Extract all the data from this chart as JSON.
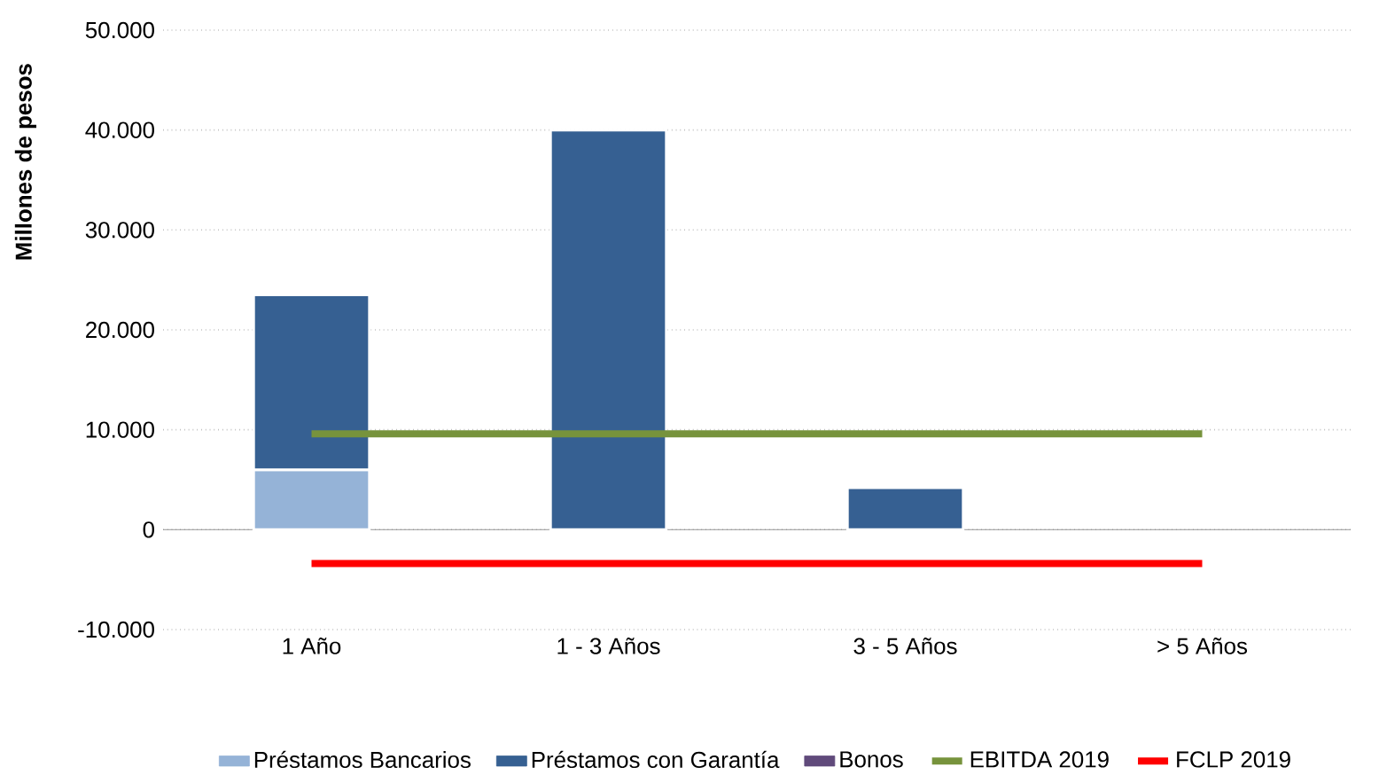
{
  "chart_data": {
    "type": "bar",
    "stacked": true,
    "ylabel": "Millones de pesos",
    "categories": [
      "1 Año",
      "1 - 3 Años",
      "3 - 5 Años",
      "> 5 Años"
    ],
    "series": [
      {
        "name": "Préstamos Bancarios",
        "color": "#95b3d7",
        "values": [
          6000,
          null,
          null,
          null
        ]
      },
      {
        "name": "Préstamos con Garantía",
        "color": "#366092",
        "values": [
          17500,
          40000,
          4200,
          null
        ]
      },
      {
        "name": "Bonos",
        "color": "#604a7b",
        "values": [
          null,
          null,
          null,
          null
        ]
      },
      {
        "name": "EBITDA 2019",
        "type": "line",
        "color": "#77933c",
        "values": [
          9600,
          9600,
          9600,
          9600
        ]
      },
      {
        "name": "FCLP 2019",
        "type": "line",
        "color": "#ff0000",
        "values": [
          -3400,
          -3400,
          -3400,
          -3400
        ]
      }
    ],
    "ylim": [
      -10000,
      50000
    ],
    "yticks": [
      {
        "value": -10000,
        "label": "-10.000"
      },
      0,
      {
        "value": 10000,
        "label": "10.000"
      },
      {
        "value": 20000,
        "label": "20.000"
      },
      {
        "value": 30000,
        "label": "30.000"
      },
      {
        "value": 40000,
        "label": "40.000"
      },
      {
        "value": 50000,
        "label": "50.000"
      }
    ],
    "grid": "y",
    "legend": "bottom"
  }
}
